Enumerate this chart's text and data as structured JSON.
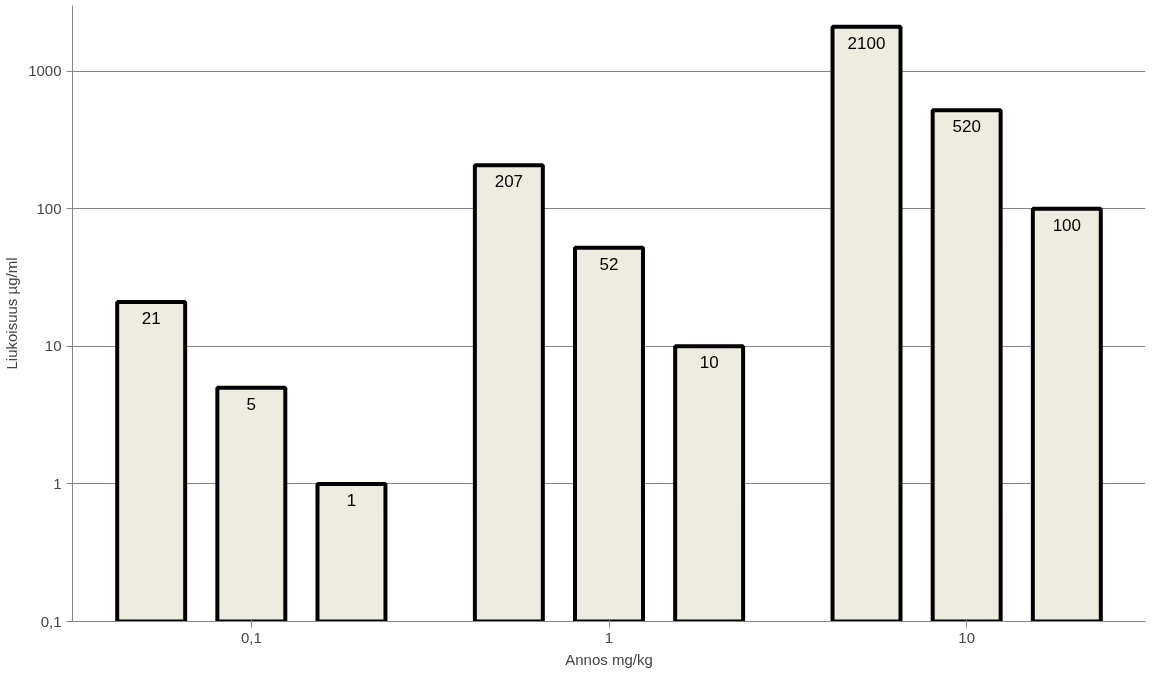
{
  "chart_data": {
    "type": "bar",
    "xlabel": "Annos mg/kg",
    "ylabel": "Liukoisuus µg/ml",
    "categories": [
      "0,1",
      "1",
      "10"
    ],
    "series": [
      {
        "color": "#eeebe0",
        "values": [
          21,
          207,
          2100
        ]
      },
      {
        "color": "#eeebe0",
        "values": [
          5,
          52,
          520
        ]
      },
      {
        "color": "#eeebe0",
        "values": [
          1,
          10,
          100
        ]
      }
    ],
    "log": "y",
    "ylim": [
      0.1,
      3000
    ],
    "yticks": [
      {
        "value": 0.1,
        "label": "0,1"
      },
      1,
      10,
      100,
      1000
    ],
    "grid": "y",
    "data_labels": true
  }
}
